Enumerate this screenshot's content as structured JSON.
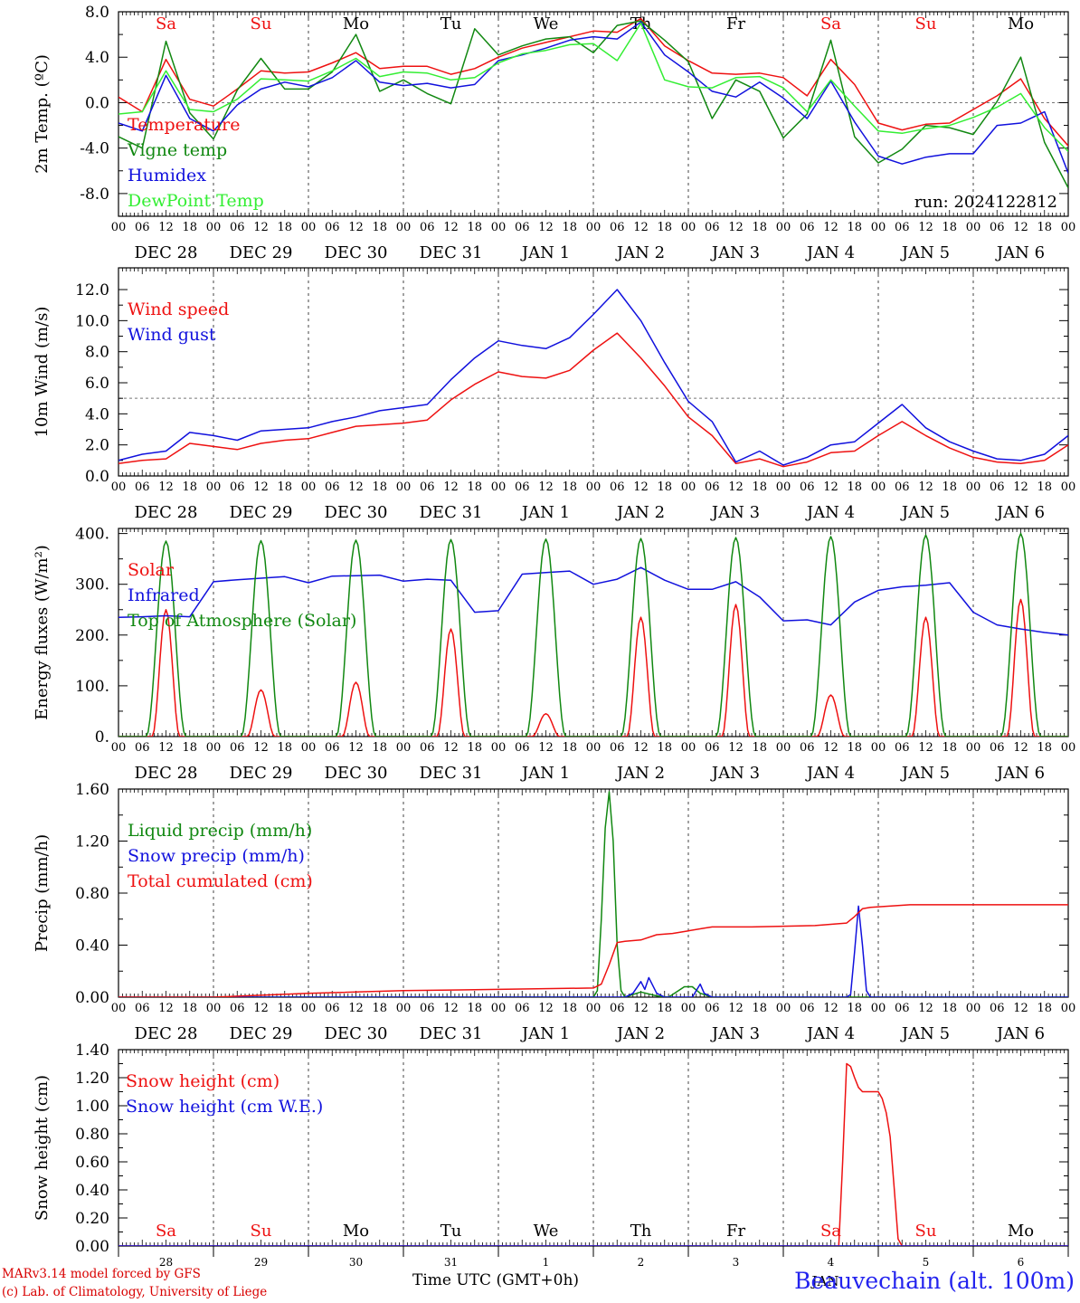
{
  "colors": {
    "red": "#ee1111",
    "green": "#118811",
    "blue": "#1111dd",
    "lightgreen": "#33ee33",
    "weekend": "#ee1111",
    "weekday": "#000000"
  },
  "days": [
    {
      "abbr": "Sa",
      "date": "DEC 28",
      "num": "28",
      "weekend": true
    },
    {
      "abbr": "Su",
      "date": "DEC 29",
      "num": "29",
      "weekend": true
    },
    {
      "abbr": "Mo",
      "date": "DEC 30",
      "num": "30",
      "weekend": false
    },
    {
      "abbr": "Tu",
      "date": "DEC 31",
      "num": "31",
      "weekend": false
    },
    {
      "abbr": "We",
      "date": "JAN 1",
      "num": "1",
      "weekend": false
    },
    {
      "abbr": "Th",
      "date": "JAN 2",
      "num": "2",
      "weekend": false
    },
    {
      "abbr": "Fr",
      "date": "JAN 3",
      "num": "3",
      "weekend": false
    },
    {
      "abbr": "Sa",
      "date": "JAN 4",
      "num": "4",
      "weekend": true
    },
    {
      "abbr": "Su",
      "date": "JAN 5",
      "num": "5",
      "weekend": true
    },
    {
      "abbr": "Mo",
      "date": "JAN 6",
      "num": "6",
      "weekend": false
    }
  ],
  "hour_labels": [
    "00",
    "06",
    "12",
    "18"
  ],
  "hour_end_label": "00",
  "footer": {
    "model": "MARv3.14 model forced by GFS",
    "lab": "(c) Lab. of Climatology, University of Liege",
    "axis": "Time UTC (GMT+0h)",
    "month": "JAN",
    "station": "Beauvechain (alt. 100m)"
  },
  "chart_data": [
    {
      "type": "line",
      "ylabel": "2m Temp. (ºC)",
      "ylim": [
        -10,
        8
      ],
      "yticks": [
        8,
        4,
        0,
        -4,
        -8
      ],
      "yticklabels": [
        "8.0",
        "4.0",
        "0.0",
        "-4.0",
        "-8.0"
      ],
      "hline": 0,
      "annotation": "run: 2024122812",
      "x_unit": "hours since DEC 28 00 UTC",
      "series": [
        {
          "name": "Temperature",
          "color": "red",
          "x": [
            0,
            6,
            12,
            18,
            24,
            30,
            36,
            42,
            48,
            54,
            60,
            66,
            72,
            78,
            84,
            90,
            96,
            102,
            108,
            114,
            120,
            126,
            132,
            138,
            144,
            150,
            156,
            162,
            168,
            174,
            180,
            186,
            192,
            198,
            204,
            210,
            216,
            222,
            228,
            234,
            240
          ],
          "values": [
            0.5,
            -0.8,
            3.8,
            0.3,
            -0.3,
            1.2,
            2.8,
            2.6,
            2.7,
            3.5,
            4.4,
            3.0,
            3.2,
            3.2,
            2.5,
            3.0,
            4.0,
            4.8,
            5.3,
            5.8,
            6.3,
            6.2,
            7.4,
            5.0,
            3.7,
            2.6,
            2.5,
            2.6,
            2.2,
            0.6,
            3.8,
            1.6,
            -1.8,
            -2.4,
            -1.9,
            -1.8,
            -0.6,
            0.6,
            2.1,
            -1.4,
            -3.8
          ]
        },
        {
          "name": "Vigne temp",
          "color": "green",
          "x": [
            0,
            6,
            12,
            18,
            24,
            30,
            36,
            42,
            48,
            54,
            60,
            66,
            72,
            78,
            84,
            90,
            96,
            102,
            108,
            114,
            120,
            126,
            132,
            138,
            144,
            150,
            156,
            162,
            168,
            174,
            180,
            186,
            192,
            198,
            204,
            210,
            216,
            222,
            228,
            234,
            240
          ],
          "values": [
            -3.0,
            -4.0,
            5.4,
            -0.9,
            -3.2,
            1.1,
            3.9,
            1.2,
            1.2,
            2.7,
            6.0,
            1.0,
            2.0,
            0.8,
            -0.1,
            6.5,
            4.2,
            5.0,
            5.6,
            5.8,
            4.4,
            6.8,
            7.2,
            5.5,
            3.6,
            -1.4,
            2.0,
            1.0,
            -3.1,
            -1.0,
            5.5,
            -3.0,
            -5.3,
            -4.1,
            -2.0,
            -2.2,
            -2.8,
            0.1,
            4.0,
            -3.5,
            -7.5
          ]
        },
        {
          "name": "Humidex",
          "color": "blue",
          "x": [
            0,
            6,
            12,
            18,
            24,
            30,
            36,
            42,
            48,
            54,
            60,
            66,
            72,
            78,
            84,
            90,
            96,
            102,
            108,
            114,
            120,
            126,
            132,
            138,
            144,
            150,
            156,
            162,
            168,
            174,
            180,
            186,
            192,
            198,
            204,
            210,
            216,
            222,
            228,
            234,
            240
          ],
          "values": [
            -1.8,
            -2.5,
            2.4,
            -1.4,
            -2.5,
            -0.2,
            1.2,
            1.8,
            1.4,
            2.2,
            3.7,
            1.8,
            1.5,
            1.7,
            1.3,
            1.6,
            3.7,
            4.2,
            4.8,
            5.5,
            5.8,
            5.6,
            7.1,
            4.2,
            2.7,
            1.0,
            0.5,
            1.8,
            0.4,
            -1.4,
            1.9,
            -1.7,
            -4.7,
            -5.4,
            -4.8,
            -4.5,
            -4.5,
            -2.0,
            -1.8,
            -0.8,
            -6.2
          ]
        },
        {
          "name": "DewPoint Temp",
          "color": "lightgreen",
          "x": [
            0,
            6,
            12,
            18,
            24,
            30,
            36,
            42,
            48,
            54,
            60,
            66,
            72,
            78,
            84,
            90,
            96,
            102,
            108,
            114,
            120,
            126,
            132,
            138,
            144,
            150,
            156,
            162,
            168,
            174,
            180,
            186,
            192,
            198,
            204,
            210,
            216,
            222,
            228,
            234,
            240
          ],
          "values": [
            -1.0,
            -0.8,
            2.8,
            -0.6,
            -0.8,
            0.3,
            2.1,
            2.0,
            1.9,
            2.8,
            3.9,
            2.3,
            2.7,
            2.6,
            2.0,
            2.2,
            3.5,
            4.3,
            4.6,
            5.1,
            5.2,
            3.7,
            7.0,
            2.0,
            1.4,
            1.3,
            2.2,
            2.3,
            1.3,
            -0.8,
            2.0,
            -0.3,
            -2.5,
            -2.7,
            -2.3,
            -2.0,
            -1.3,
            -0.4,
            0.8,
            -2.2,
            -4.3
          ]
        }
      ]
    },
    {
      "type": "line",
      "ylabel": "10m Wind (m/s)",
      "ylim": [
        0,
        13.4
      ],
      "yticks": [
        12,
        10,
        8,
        6,
        4,
        2,
        0
      ],
      "yticklabels": [
        "12.0",
        "10.0",
        "8.0",
        "6.0",
        "4.0",
        "2.0",
        "0.0"
      ],
      "hline": 5,
      "series": [
        {
          "name": "Wind speed",
          "color": "red",
          "x": [
            0,
            6,
            12,
            18,
            24,
            30,
            36,
            42,
            48,
            54,
            60,
            66,
            72,
            78,
            84,
            90,
            96,
            102,
            108,
            114,
            120,
            126,
            132,
            138,
            144,
            150,
            156,
            162,
            168,
            174,
            180,
            186,
            192,
            198,
            204,
            210,
            216,
            222,
            228,
            234,
            240
          ],
          "values": [
            0.8,
            1.0,
            1.1,
            2.1,
            1.9,
            1.7,
            2.1,
            2.3,
            2.4,
            2.8,
            3.2,
            3.3,
            3.4,
            3.6,
            4.9,
            5.9,
            6.7,
            6.4,
            6.3,
            6.8,
            8.1,
            9.2,
            7.6,
            5.8,
            3.8,
            2.6,
            0.8,
            1.1,
            0.6,
            0.9,
            1.5,
            1.6,
            2.6,
            3.5,
            2.6,
            1.8,
            1.2,
            0.9,
            0.8,
            1.0,
            2.0
          ]
        },
        {
          "name": "Wind gust",
          "color": "blue",
          "x": [
            0,
            6,
            12,
            18,
            24,
            30,
            36,
            42,
            48,
            54,
            60,
            66,
            72,
            78,
            84,
            90,
            96,
            102,
            108,
            114,
            120,
            126,
            132,
            138,
            144,
            150,
            156,
            162,
            168,
            174,
            180,
            186,
            192,
            198,
            204,
            210,
            216,
            222,
            228,
            234,
            240
          ],
          "values": [
            1.0,
            1.4,
            1.6,
            2.8,
            2.6,
            2.3,
            2.9,
            3.0,
            3.1,
            3.5,
            3.8,
            4.2,
            4.4,
            4.6,
            6.2,
            7.6,
            8.7,
            8.4,
            8.2,
            8.9,
            10.4,
            12.0,
            10.0,
            7.3,
            4.8,
            3.5,
            0.9,
            1.6,
            0.7,
            1.2,
            2.0,
            2.2,
            3.4,
            4.6,
            3.1,
            2.2,
            1.6,
            1.1,
            1.0,
            1.4,
            2.6
          ]
        }
      ]
    },
    {
      "type": "line",
      "ylabel": "Energy fluxes (W/m²)",
      "ylim": [
        0,
        410
      ],
      "yticks": [
        400,
        300,
        200,
        100,
        0
      ],
      "yticklabels": [
        "400.",
        "300.",
        "200.",
        "100.",
        "0."
      ],
      "series": [
        {
          "name": "Solar",
          "color": "red",
          "peaks": [
            250,
            92,
            107,
            212,
            45,
            235,
            260,
            82,
            235,
            270
          ]
        },
        {
          "name": "Infrared",
          "color": "blue",
          "x": [
            0,
            6,
            12,
            18,
            24,
            30,
            36,
            42,
            48,
            54,
            60,
            66,
            72,
            78,
            84,
            90,
            96,
            102,
            108,
            114,
            120,
            126,
            132,
            138,
            144,
            150,
            156,
            162,
            168,
            174,
            180,
            186,
            192,
            198,
            204,
            210,
            216,
            222,
            228,
            234,
            240
          ],
          "values": [
            235,
            236,
            238,
            236,
            305,
            309,
            312,
            315,
            303,
            316,
            317,
            318,
            306,
            310,
            308,
            245,
            248,
            320,
            323,
            326,
            300,
            310,
            333,
            308,
            290,
            290,
            305,
            275,
            228,
            230,
            220,
            265,
            288,
            295,
            298,
            303,
            245,
            220,
            212,
            205,
            200
          ]
        },
        {
          "name": "Top of Atmosphere (Solar)",
          "color": "green",
          "peaks": [
            385,
            386,
            387,
            388,
            389,
            390,
            392,
            394,
            397,
            400
          ]
        }
      ]
    },
    {
      "type": "line",
      "ylabel": "Precip (mm/h)",
      "ylim": [
        0,
        1.6
      ],
      "yticks": [
        1.6,
        1.2,
        0.8,
        0.4,
        0
      ],
      "yticklabels": [
        "1.60",
        "1.20",
        "0.80",
        "0.40",
        "0.00"
      ],
      "series": [
        {
          "name": "Liquid precip (mm/h)",
          "color": "green",
          "x": [
            0,
            102,
            118,
            120,
            121,
            122,
            123,
            124,
            125,
            126,
            127,
            128,
            130,
            132,
            136,
            139,
            141,
            143,
            145,
            147,
            150,
            240
          ],
          "values": [
            0,
            0,
            0,
            0,
            0.05,
            0.6,
            1.3,
            1.58,
            1.2,
            0.4,
            0.05,
            0,
            0.02,
            0.04,
            0.01,
            0,
            0.04,
            0.08,
            0.08,
            0.03,
            0,
            0
          ]
        },
        {
          "name": "Snow precip (mm/h)",
          "color": "blue",
          "x": [
            0,
            128,
            130,
            132,
            133,
            134,
            136,
            138,
            140,
            145,
            147,
            148,
            150,
            184,
            185,
            186,
            187,
            188,
            189,
            190,
            240
          ],
          "values": [
            0,
            0,
            0.03,
            0.12,
            0.06,
            0.15,
            0.03,
            0,
            0,
            0,
            0.1,
            0.03,
            0,
            0,
            0.02,
            0.35,
            0.7,
            0.4,
            0.05,
            0,
            0
          ]
        },
        {
          "name": "Total cumulated (cm)",
          "color": "red",
          "x": [
            0,
            24,
            48,
            72,
            96,
            120,
            122,
            124,
            126,
            128,
            132,
            136,
            140,
            144,
            148,
            150,
            160,
            176,
            184,
            186,
            188,
            190,
            200,
            220,
            240
          ],
          "values": [
            0,
            0,
            0.03,
            0.05,
            0.06,
            0.07,
            0.1,
            0.25,
            0.42,
            0.43,
            0.44,
            0.48,
            0.49,
            0.51,
            0.53,
            0.54,
            0.54,
            0.55,
            0.57,
            0.62,
            0.68,
            0.69,
            0.71,
            0.71,
            0.71
          ]
        }
      ]
    },
    {
      "type": "line",
      "ylabel": "Snow height (cm)",
      "ylim": [
        0,
        1.4
      ],
      "yticks": [
        1.4,
        1.2,
        1.0,
        0.8,
        0.6,
        0.4,
        0.2,
        0
      ],
      "yticklabels": [
        "1.40",
        "1.20",
        "1.00",
        "0.80",
        "0.60",
        "0.40",
        "0.20",
        "0.00"
      ],
      "series": [
        {
          "name": "Snow height (cm)",
          "color": "red",
          "x": [
            0,
            180,
            182,
            183,
            184,
            185,
            186,
            187,
            188,
            189,
            190,
            191,
            192,
            193,
            194,
            195,
            196,
            197,
            198,
            199,
            200,
            240
          ],
          "values": [
            0,
            0,
            0,
            0.6,
            1.3,
            1.28,
            1.2,
            1.13,
            1.1,
            1.1,
            1.1,
            1.1,
            1.1,
            1.05,
            0.95,
            0.78,
            0.42,
            0.05,
            0,
            0,
            0,
            0
          ]
        },
        {
          "name": "Snow height (cm W.E.)",
          "color": "blue",
          "x": [
            0,
            240
          ],
          "values": [
            0,
            0
          ]
        }
      ]
    }
  ]
}
